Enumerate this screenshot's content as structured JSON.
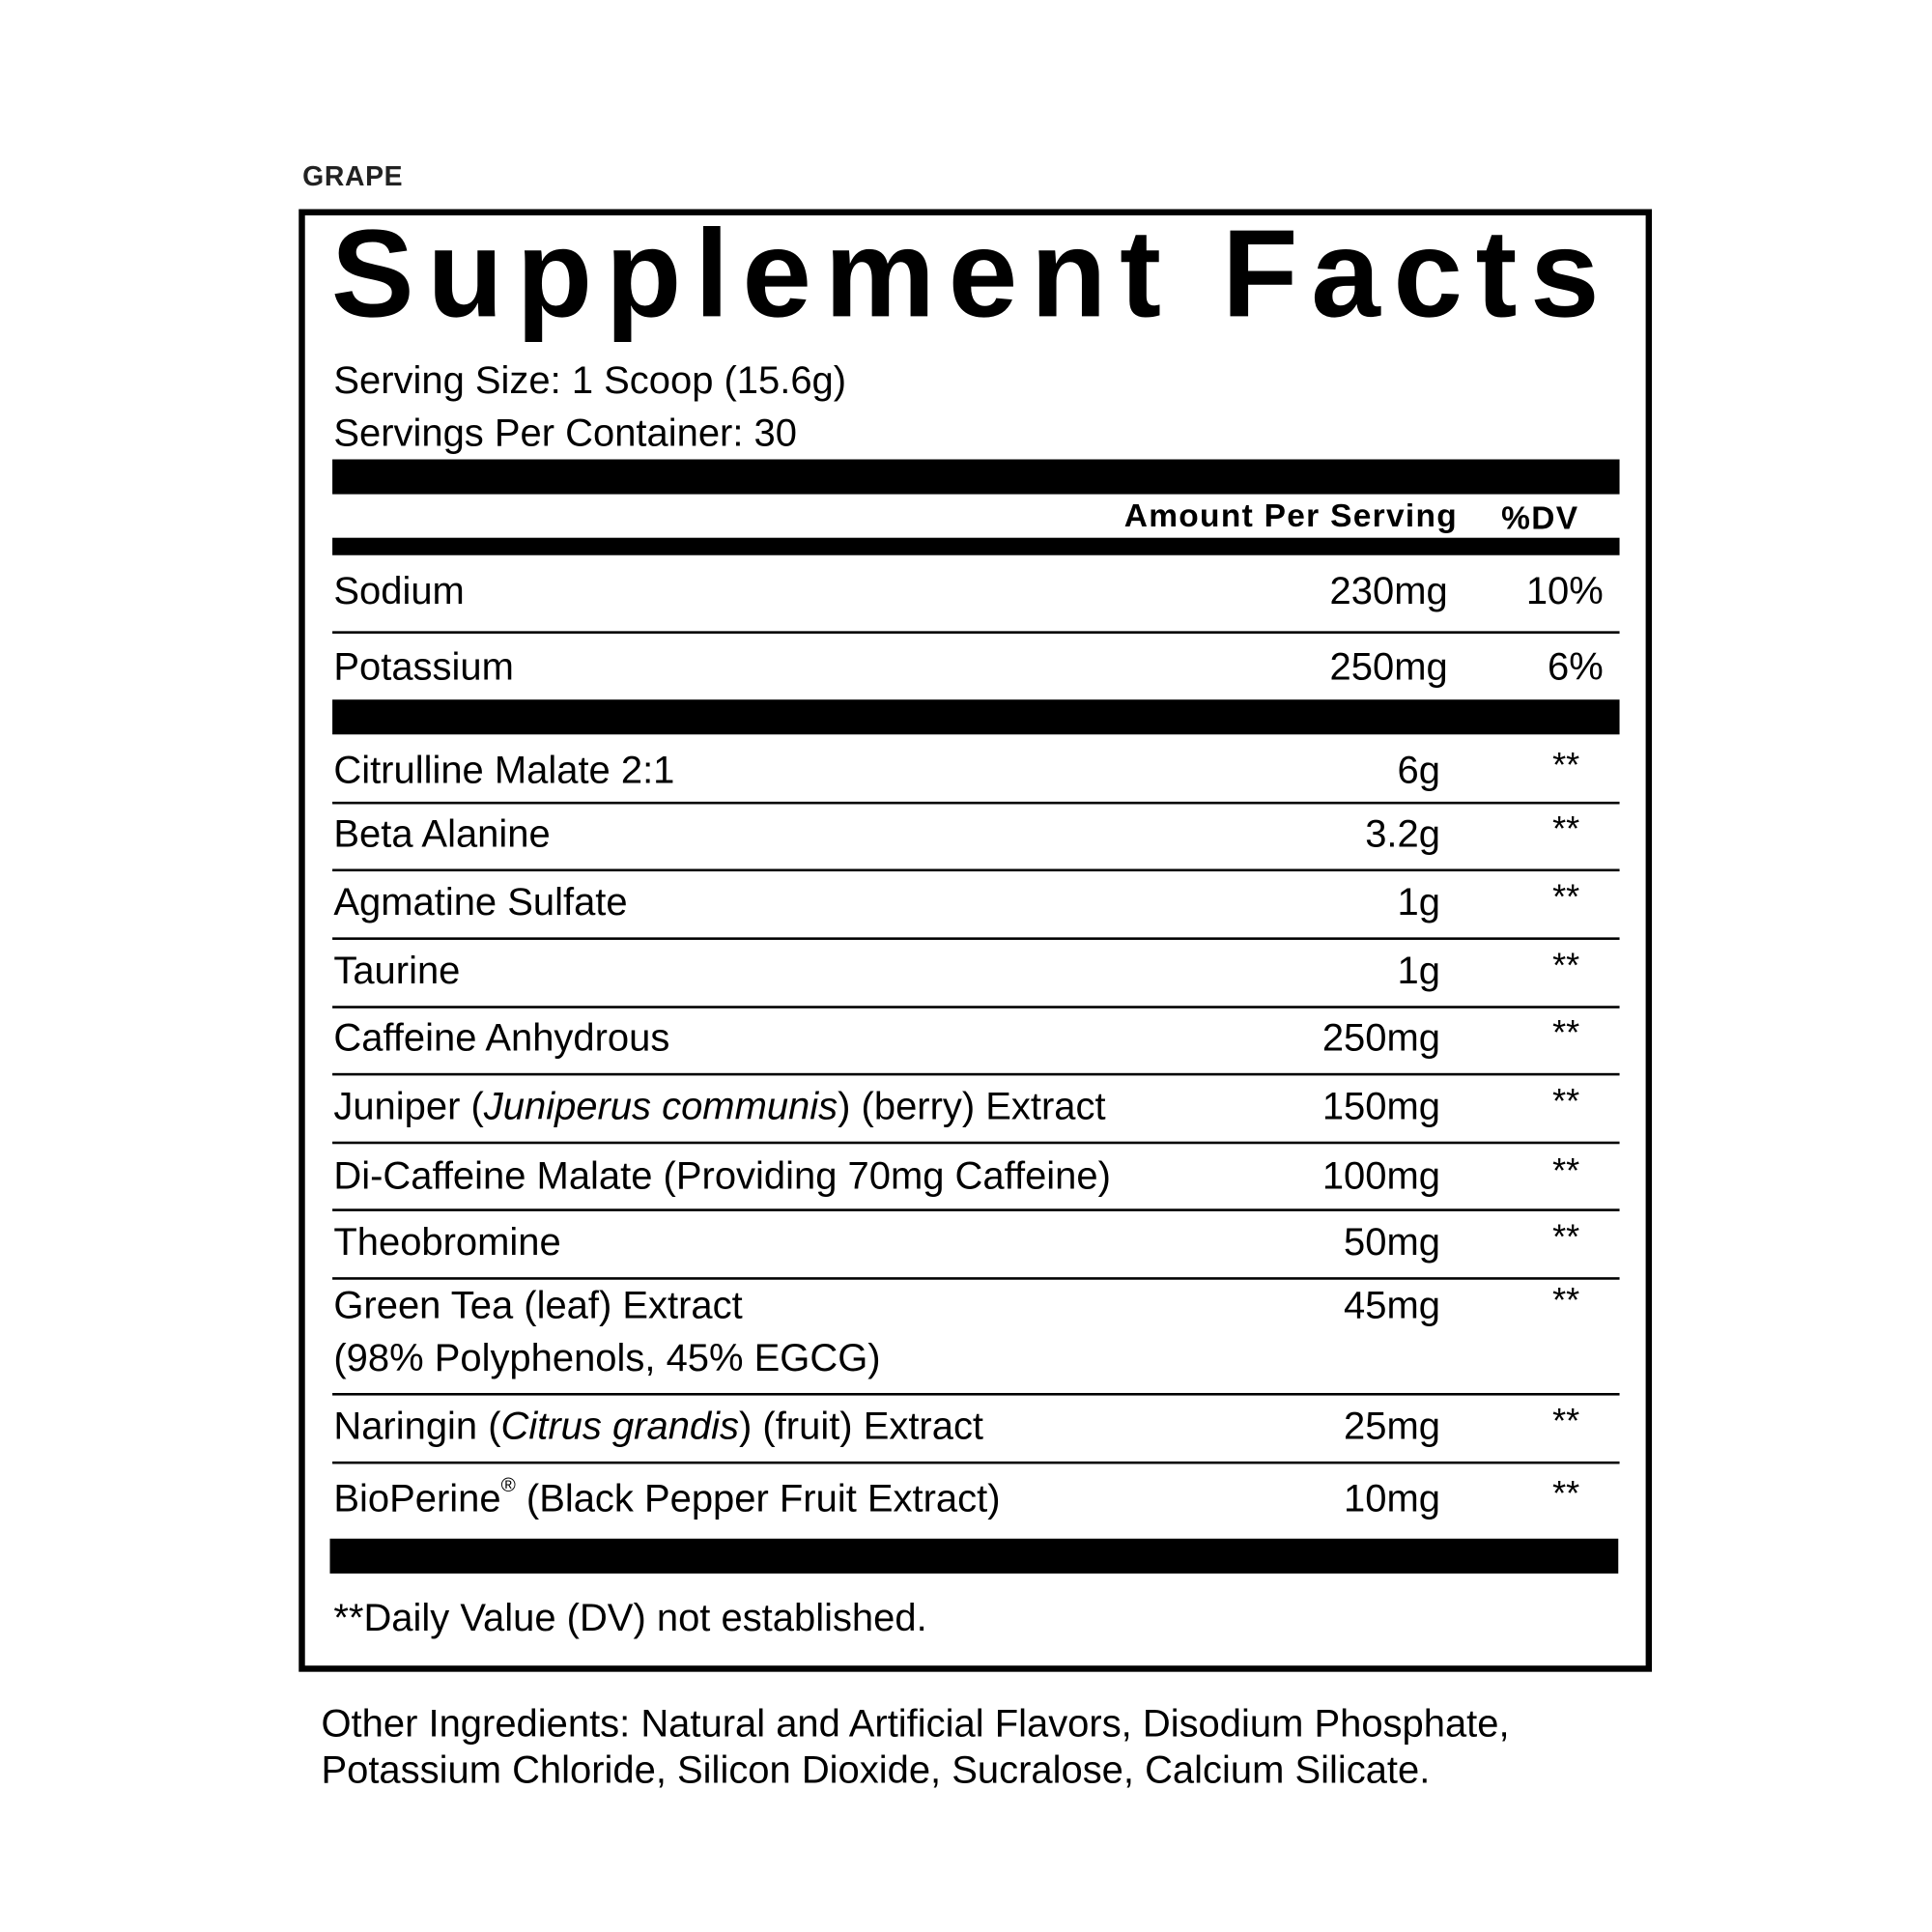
{
  "flavor": "GRAPE",
  "title": "Supplement Facts",
  "serving_size": "Serving Size: 1 Scoop (15.6g)",
  "servings_per_container": "Servings Per Container: 30",
  "header": {
    "amount": "Amount Per Serving",
    "dv": "%DV"
  },
  "nutrients": [
    {
      "name": "Sodium",
      "amount": "230mg",
      "dv": "10%"
    },
    {
      "name": "Potassium",
      "amount": "250mg",
      "dv": "6%"
    }
  ],
  "ingredients": [
    {
      "parts": [
        {
          "t": "Citrulline Malate 2:1"
        }
      ],
      "amount": "6g",
      "dv": "**"
    },
    {
      "parts": [
        {
          "t": "Beta Alanine"
        }
      ],
      "amount": "3.2g",
      "dv": "**"
    },
    {
      "parts": [
        {
          "t": "Agmatine Sulfate"
        }
      ],
      "amount": "1g",
      "dv": "**"
    },
    {
      "parts": [
        {
          "t": "Taurine"
        }
      ],
      "amount": "1g",
      "dv": "**"
    },
    {
      "parts": [
        {
          "t": "Caffeine Anhydrous"
        }
      ],
      "amount": "250mg",
      "dv": "**"
    },
    {
      "parts": [
        {
          "t": "Juniper ("
        },
        {
          "t": "Juniperus communis",
          "i": true
        },
        {
          "t": ") (berry) Extract"
        }
      ],
      "amount": "150mg",
      "dv": "**"
    },
    {
      "parts": [
        {
          "t": "Di-Caffeine Malate (Providing 70mg Caffeine)"
        }
      ],
      "amount": "100mg",
      "dv": "**"
    },
    {
      "parts": [
        {
          "t": "Theobromine"
        }
      ],
      "amount": "50mg",
      "dv": "**"
    },
    {
      "parts": [
        {
          "t": "Green Tea (leaf) Extract"
        }
      ],
      "line2": "(98% Polyphenols, 45% EGCG)",
      "amount": "45mg",
      "dv": "**"
    },
    {
      "parts": [
        {
          "t": "Naringin ("
        },
        {
          "t": "Citrus grandis",
          "i": true
        },
        {
          "t": ") (fruit) Extract"
        }
      ],
      "amount": "25mg",
      "dv": "**"
    },
    {
      "parts": [
        {
          "t": "BioPerine"
        },
        {
          "t": "®",
          "sup": true
        },
        {
          "t": " (Black Pepper Fruit Extract)"
        }
      ],
      "amount": "10mg",
      "dv": "**"
    }
  ],
  "footnote": "**Daily Value (DV) not established.",
  "other_ingredients": [
    "Other Ingredients: Natural and Artificial Flavors, Disodium Phosphate,",
    "Potassium Chloride, Silicon Dioxide, Sucralose, Calcium Silicate."
  ]
}
